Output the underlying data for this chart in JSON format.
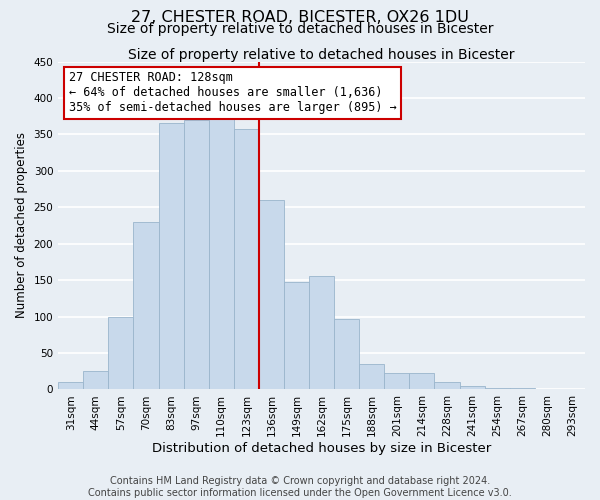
{
  "title": "27, CHESTER ROAD, BICESTER, OX26 1DU",
  "subtitle": "Size of property relative to detached houses in Bicester",
  "xlabel": "Distribution of detached houses by size in Bicester",
  "ylabel": "Number of detached properties",
  "footer_line1": "Contains HM Land Registry data © Crown copyright and database right 2024.",
  "footer_line2": "Contains public sector information licensed under the Open Government Licence v3.0.",
  "categories": [
    "31sqm",
    "44sqm",
    "57sqm",
    "70sqm",
    "83sqm",
    "97sqm",
    "110sqm",
    "123sqm",
    "136sqm",
    "149sqm",
    "162sqm",
    "175sqm",
    "188sqm",
    "201sqm",
    "214sqm",
    "228sqm",
    "241sqm",
    "254sqm",
    "267sqm",
    "280sqm",
    "293sqm"
  ],
  "values": [
    10,
    25,
    100,
    230,
    365,
    370,
    373,
    358,
    260,
    148,
    155,
    96,
    35,
    22,
    22,
    10,
    5,
    2,
    2,
    1,
    1
  ],
  "bar_color": "#c8d9eb",
  "bar_edge_color": "#9ab5cc",
  "vline_color": "#cc0000",
  "vline_x": 7.5,
  "annotation_line1": "27 CHESTER ROAD: 128sqm",
  "annotation_line2": "← 64% of detached houses are smaller (1,636)",
  "annotation_line3": "35% of semi-detached houses are larger (895) →",
  "annotation_box_facecolor": "#ffffff",
  "annotation_box_edgecolor": "#cc0000",
  "ylim": [
    0,
    450
  ],
  "yticks": [
    0,
    50,
    100,
    150,
    200,
    250,
    300,
    350,
    400,
    450
  ],
  "background_color": "#e8eef4",
  "plot_background_color": "#e8eef4",
  "grid_color": "#ffffff",
  "title_fontsize": 11.5,
  "subtitle_fontsize": 10,
  "xlabel_fontsize": 9.5,
  "ylabel_fontsize": 8.5,
  "tick_fontsize": 7.5,
  "annotation_fontsize": 8.5,
  "footer_fontsize": 7
}
